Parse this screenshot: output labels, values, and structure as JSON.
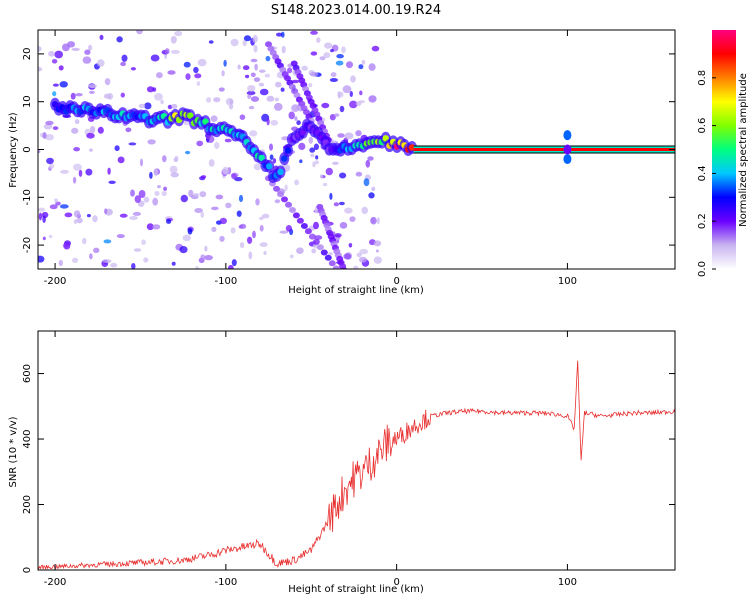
{
  "figure": {
    "title": "S148.2023.014.00.19.R24"
  },
  "chart_data": [
    {
      "type": "heatmap",
      "xlabel": "Height of straight line (km)",
      "ylabel": "Frequency (Hz)",
      "xlim": [
        -210,
        163
      ],
      "ylim": [
        -25,
        25
      ],
      "xticks": [
        -200,
        -100,
        0,
        100
      ],
      "yticks": [
        -20,
        -10,
        0,
        10,
        20
      ],
      "colorbar": {
        "label": "Normalized spectral amplitude",
        "range": [
          0,
          1
        ],
        "ticks": [
          "0.0",
          "0.2",
          "0.4",
          "0.6",
          "0.8"
        ],
        "colors": [
          "#ffffff",
          "#c8b4f0",
          "#6a00ff",
          "#0000ff",
          "#00c8ff",
          "#00ff80",
          "#80ff00",
          "#ffff00",
          "#ff8000",
          "#ff0000",
          "#ff0080"
        ]
      },
      "ridge": {
        "x": [
          -200,
          -180,
          -160,
          -140,
          -125,
          -110,
          -100,
          -90,
          -80,
          -70,
          -60,
          -50,
          -40,
          -30,
          -20,
          -10,
          0,
          10,
          50,
          95,
          100,
          105,
          163
        ],
        "y": [
          9,
          8,
          7,
          6,
          7,
          5,
          4,
          2,
          -2,
          -6,
          3,
          5,
          0,
          0,
          1,
          2,
          1,
          0,
          0,
          0,
          0,
          0,
          0
        ],
        "amplitude": [
          0.3,
          0.35,
          0.4,
          0.35,
          0.7,
          0.45,
          0.45,
          0.45,
          0.4,
          0.4,
          0.2,
          0.2,
          0.2,
          0.35,
          0.5,
          0.55,
          0.85,
          0.9,
          0.9,
          0.9,
          0.6,
          0.9,
          0.9
        ]
      }
    },
    {
      "type": "line",
      "xlabel": "Height of straight line (km)",
      "ylabel": "SNR (10 * v/v)",
      "xlim": [
        -210,
        163
      ],
      "ylim": [
        0,
        730
      ],
      "xticks": [
        -200,
        -100,
        0,
        100
      ],
      "yticks": [
        0,
        200,
        400,
        600
      ],
      "color": "#e83030",
      "series": [
        {
          "x": [
            -210,
            -200,
            -180,
            -160,
            -140,
            -125,
            -110,
            -100,
            -90,
            -80,
            -70,
            -60,
            -50,
            -40,
            -35,
            -30,
            -25,
            -20,
            -15,
            -10,
            -5,
            0,
            10,
            20,
            30,
            40,
            50,
            60,
            70,
            80,
            90,
            100,
            104,
            106,
            108,
            110,
            120,
            130,
            140,
            150,
            163
          ],
          "y": [
            8,
            10,
            15,
            20,
            25,
            30,
            45,
            60,
            70,
            80,
            20,
            30,
            60,
            150,
            200,
            250,
            280,
            300,
            330,
            360,
            390,
            400,
            440,
            470,
            480,
            485,
            485,
            480,
            480,
            480,
            478,
            470,
            430,
            640,
            330,
            480,
            470,
            475,
            480,
            480,
            485
          ]
        }
      ]
    }
  ]
}
